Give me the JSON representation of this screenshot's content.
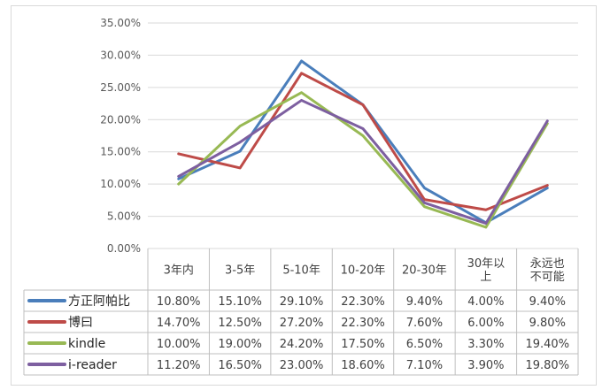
{
  "chart_data": {
    "type": "line",
    "title": "",
    "xlabel": "",
    "ylabel": "",
    "ylim": [
      0,
      35
    ],
    "y_ticks": [
      "0.00%",
      "5.00%",
      "10.00%",
      "15.00%",
      "20.00%",
      "25.00%",
      "30.00%",
      "35.00%"
    ],
    "grid": "horizontal",
    "legend": "data-table-left",
    "categories": [
      "3年内",
      "3-5年",
      "5-10年",
      "10-20年",
      "20-30年",
      "30年以上",
      "永远也不可能"
    ],
    "category_lines": [
      [
        "3年内"
      ],
      [
        "3-5年"
      ],
      [
        "5-10年"
      ],
      [
        "10-20年"
      ],
      [
        "20-30年"
      ],
      [
        "30年以",
        "上"
      ],
      [
        "永远也",
        "不可能"
      ]
    ],
    "series": [
      {
        "name": "方正阿帕比",
        "color": "#4a7ebb",
        "values": [
          10.8,
          15.1,
          29.1,
          22.3,
          9.4,
          4.0,
          9.4
        ],
        "labels": [
          "10.80%",
          "15.10%",
          "29.10%",
          "22.30%",
          "9.40%",
          "4.00%",
          "9.40%"
        ]
      },
      {
        "name": "博曰",
        "color": "#be4b48",
        "values": [
          14.7,
          12.5,
          27.2,
          22.3,
          7.6,
          6.0,
          9.8
        ],
        "labels": [
          "14.70%",
          "12.50%",
          "27.20%",
          "22.30%",
          "7.60%",
          "6.00%",
          "9.80%"
        ]
      },
      {
        "name": "kindle",
        "color": "#98b954",
        "values": [
          10.0,
          19.0,
          24.2,
          17.5,
          6.5,
          3.3,
          19.4
        ],
        "labels": [
          "10.00%",
          "19.00%",
          "24.20%",
          "17.50%",
          "6.50%",
          "3.30%",
          "19.40%"
        ]
      },
      {
        "name": "i-reader",
        "color": "#7d5fa0",
        "values": [
          11.2,
          16.5,
          23.0,
          18.6,
          7.1,
          3.9,
          19.8
        ],
        "labels": [
          "11.20%",
          "16.50%",
          "23.00%",
          "18.60%",
          "7.10%",
          "3.90%",
          "19.80%"
        ]
      }
    ]
  }
}
